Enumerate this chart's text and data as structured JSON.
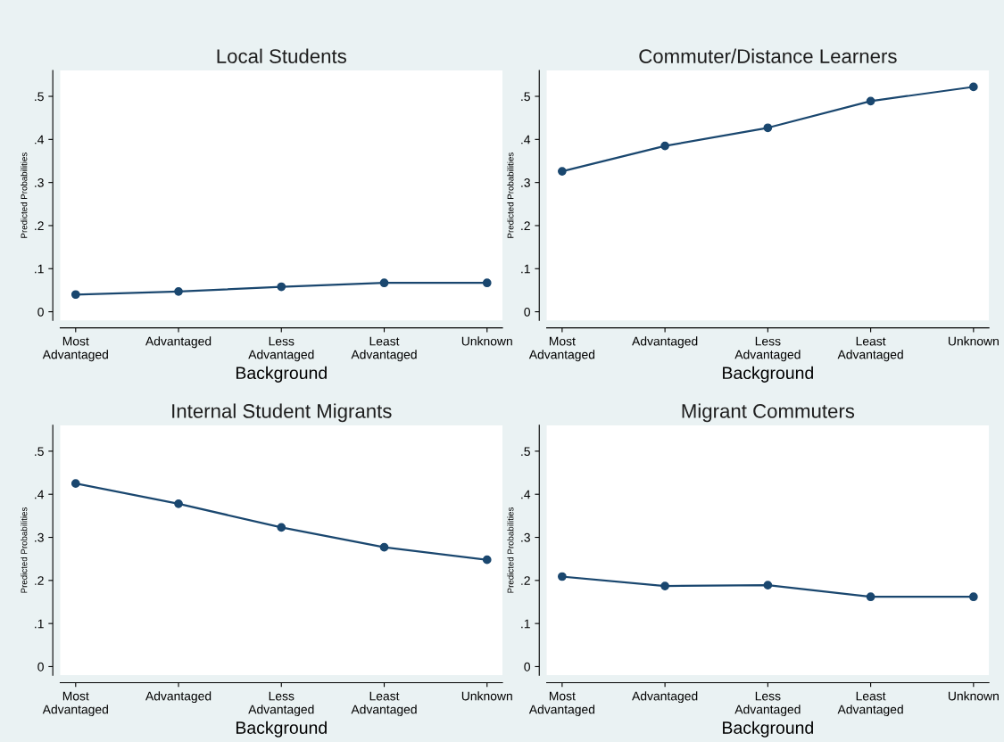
{
  "chart_data": [
    {
      "type": "line",
      "title": "Local Students",
      "xlabel": "Background",
      "ylabel": "Predicted Probabilities",
      "categories": [
        "Most\nAdvantaged",
        "Advantaged",
        "Less\nAdvantaged",
        "Least\nAdvantaged",
        "Unknown"
      ],
      "series": [
        {
          "color": "#1a476f",
          "values": [
            0.04,
            0.047,
            0.058,
            0.067,
            0.067
          ]
        }
      ],
      "ylim": [
        -0.02,
        0.56
      ],
      "yticks": [
        0,
        {
          "value": 0.1,
          "label": ".1"
        },
        {
          "value": 0.2,
          "label": ".2"
        },
        {
          "value": 0.3,
          "label": ".3"
        },
        {
          "value": 0.4,
          "label": ".4"
        },
        {
          "value": 0.5,
          "label": ".5"
        }
      ],
      "marker": "circle",
      "grid": false,
      "legend": false
    },
    {
      "type": "line",
      "title": "Commuter/Distance Learners",
      "xlabel": "Background",
      "ylabel": "Predicted Probabilities",
      "categories": [
        "Most\nAdvantaged",
        "Advantaged",
        "Less\nAdvantaged",
        "Least\nAdvantaged",
        "Unknown"
      ],
      "series": [
        {
          "color": "#1a476f",
          "values": [
            0.326,
            0.385,
            0.427,
            0.489,
            0.522
          ]
        }
      ],
      "ylim": [
        -0.02,
        0.56
      ],
      "yticks": [
        0,
        {
          "value": 0.1,
          "label": ".1"
        },
        {
          "value": 0.2,
          "label": ".2"
        },
        {
          "value": 0.3,
          "label": ".3"
        },
        {
          "value": 0.4,
          "label": ".4"
        },
        {
          "value": 0.5,
          "label": ".5"
        }
      ],
      "marker": "circle",
      "grid": false,
      "legend": false
    },
    {
      "type": "line",
      "title": "Internal Student Migrants",
      "xlabel": "Background",
      "ylabel": "Predicted Probabilities",
      "categories": [
        "Most\nAdvantaged",
        "Advantaged",
        "Less\nAdvantaged",
        "Least\nAdvantaged",
        "Unknown"
      ],
      "series": [
        {
          "color": "#1a476f",
          "values": [
            0.425,
            0.378,
            0.323,
            0.277,
            0.248
          ]
        }
      ],
      "ylim": [
        -0.02,
        0.56
      ],
      "yticks": [
        0,
        {
          "value": 0.1,
          "label": ".1"
        },
        {
          "value": 0.2,
          "label": ".2"
        },
        {
          "value": 0.3,
          "label": ".3"
        },
        {
          "value": 0.4,
          "label": ".4"
        },
        {
          "value": 0.5,
          "label": ".5"
        }
      ],
      "marker": "circle",
      "grid": false,
      "legend": false
    },
    {
      "type": "line",
      "title": "Migrant Commuters",
      "xlabel": "Background",
      "ylabel": "Predicted Probabilities",
      "categories": [
        "Most\nAdvantaged",
        "Advantaged",
        "Less\nAdvantaged",
        "Least\nAdvantaged",
        "Unknown"
      ],
      "series": [
        {
          "color": "#1a476f",
          "values": [
            0.209,
            0.187,
            0.189,
            0.162,
            0.162
          ]
        }
      ],
      "ylim": [
        -0.02,
        0.56
      ],
      "yticks": [
        0,
        {
          "value": 0.1,
          "label": ".1"
        },
        {
          "value": 0.2,
          "label": ".2"
        },
        {
          "value": 0.3,
          "label": ".3"
        },
        {
          "value": 0.4,
          "label": ".4"
        },
        {
          "value": 0.5,
          "label": ".5"
        }
      ],
      "marker": "circle",
      "grid": false,
      "legend": false
    }
  ]
}
